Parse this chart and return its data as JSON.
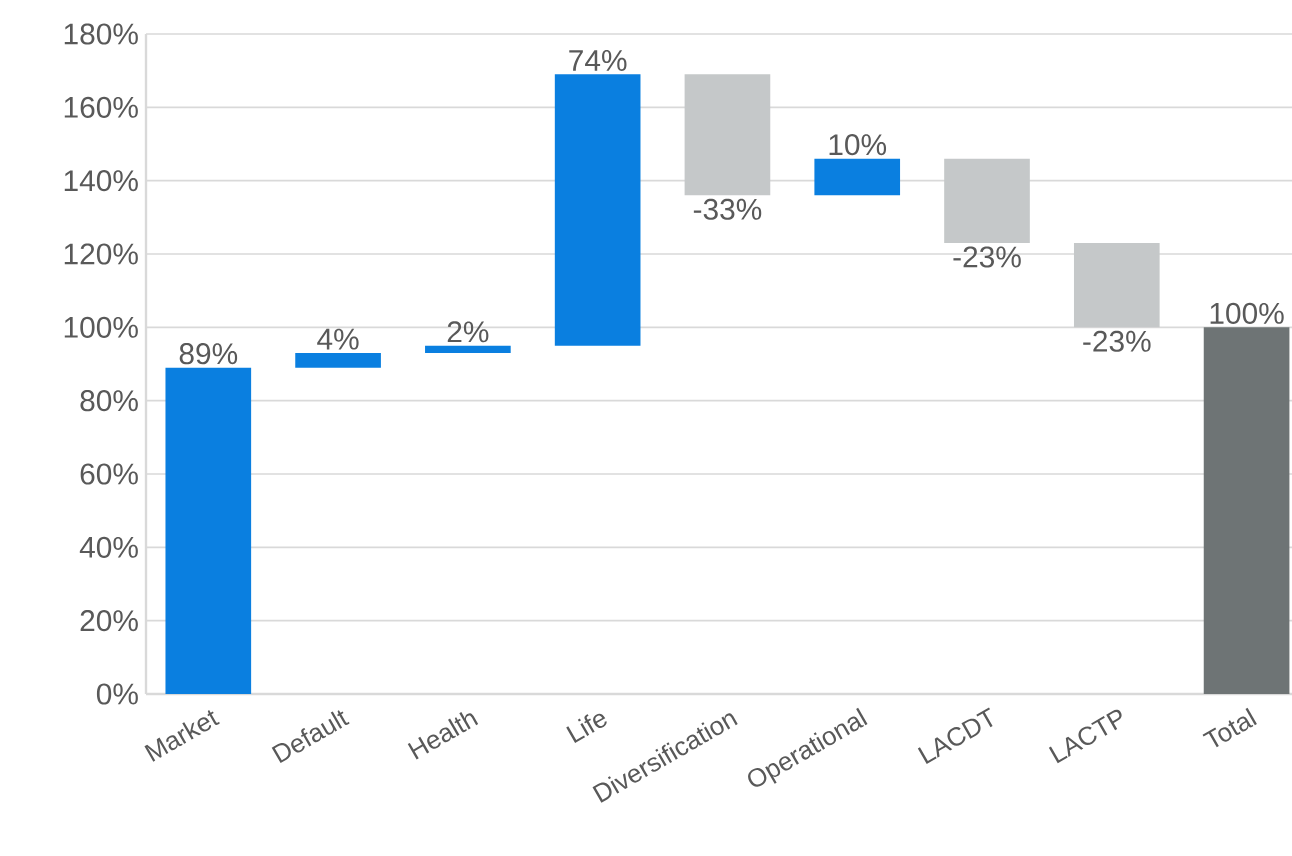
{
  "chart_data": {
    "type": "bar",
    "categories": [
      "Market",
      "Default",
      "Health",
      "Life",
      "Diversification",
      "Operational",
      "LACDT",
      "LACTP",
      "Total"
    ],
    "values": [
      89,
      4,
      2,
      74,
      -33,
      10,
      -23,
      -23,
      100
    ],
    "base": [
      0,
      89,
      93,
      95,
      169,
      136,
      146,
      123,
      0
    ],
    "colors": [
      "#0a7fe0",
      "#0a7fe0",
      "#0a7fe0",
      "#0a7fe0",
      "#c5c8c9",
      "#0a7fe0",
      "#c5c8c9",
      "#c5c8c9",
      "#6e7475"
    ],
    "value_labels": [
      "89%",
      "4%",
      "2%",
      "74%",
      "-33%",
      "10%",
      "-23%",
      "-23%",
      "100%"
    ],
    "ylim": [
      0,
      180
    ],
    "yticks": [
      {
        "value": 0,
        "label": "0%"
      },
      {
        "value": 20,
        "label": "20%"
      },
      {
        "value": 40,
        "label": "40%"
      },
      {
        "value": 60,
        "label": "60%"
      },
      {
        "value": 80,
        "label": "80%"
      },
      {
        "value": 100,
        "label": "100%"
      },
      {
        "value": 120,
        "label": "120%"
      },
      {
        "value": 140,
        "label": "140%"
      },
      {
        "value": 160,
        "label": "160%"
      },
      {
        "value": 180,
        "label": "180%"
      }
    ],
    "grid": "y"
  }
}
